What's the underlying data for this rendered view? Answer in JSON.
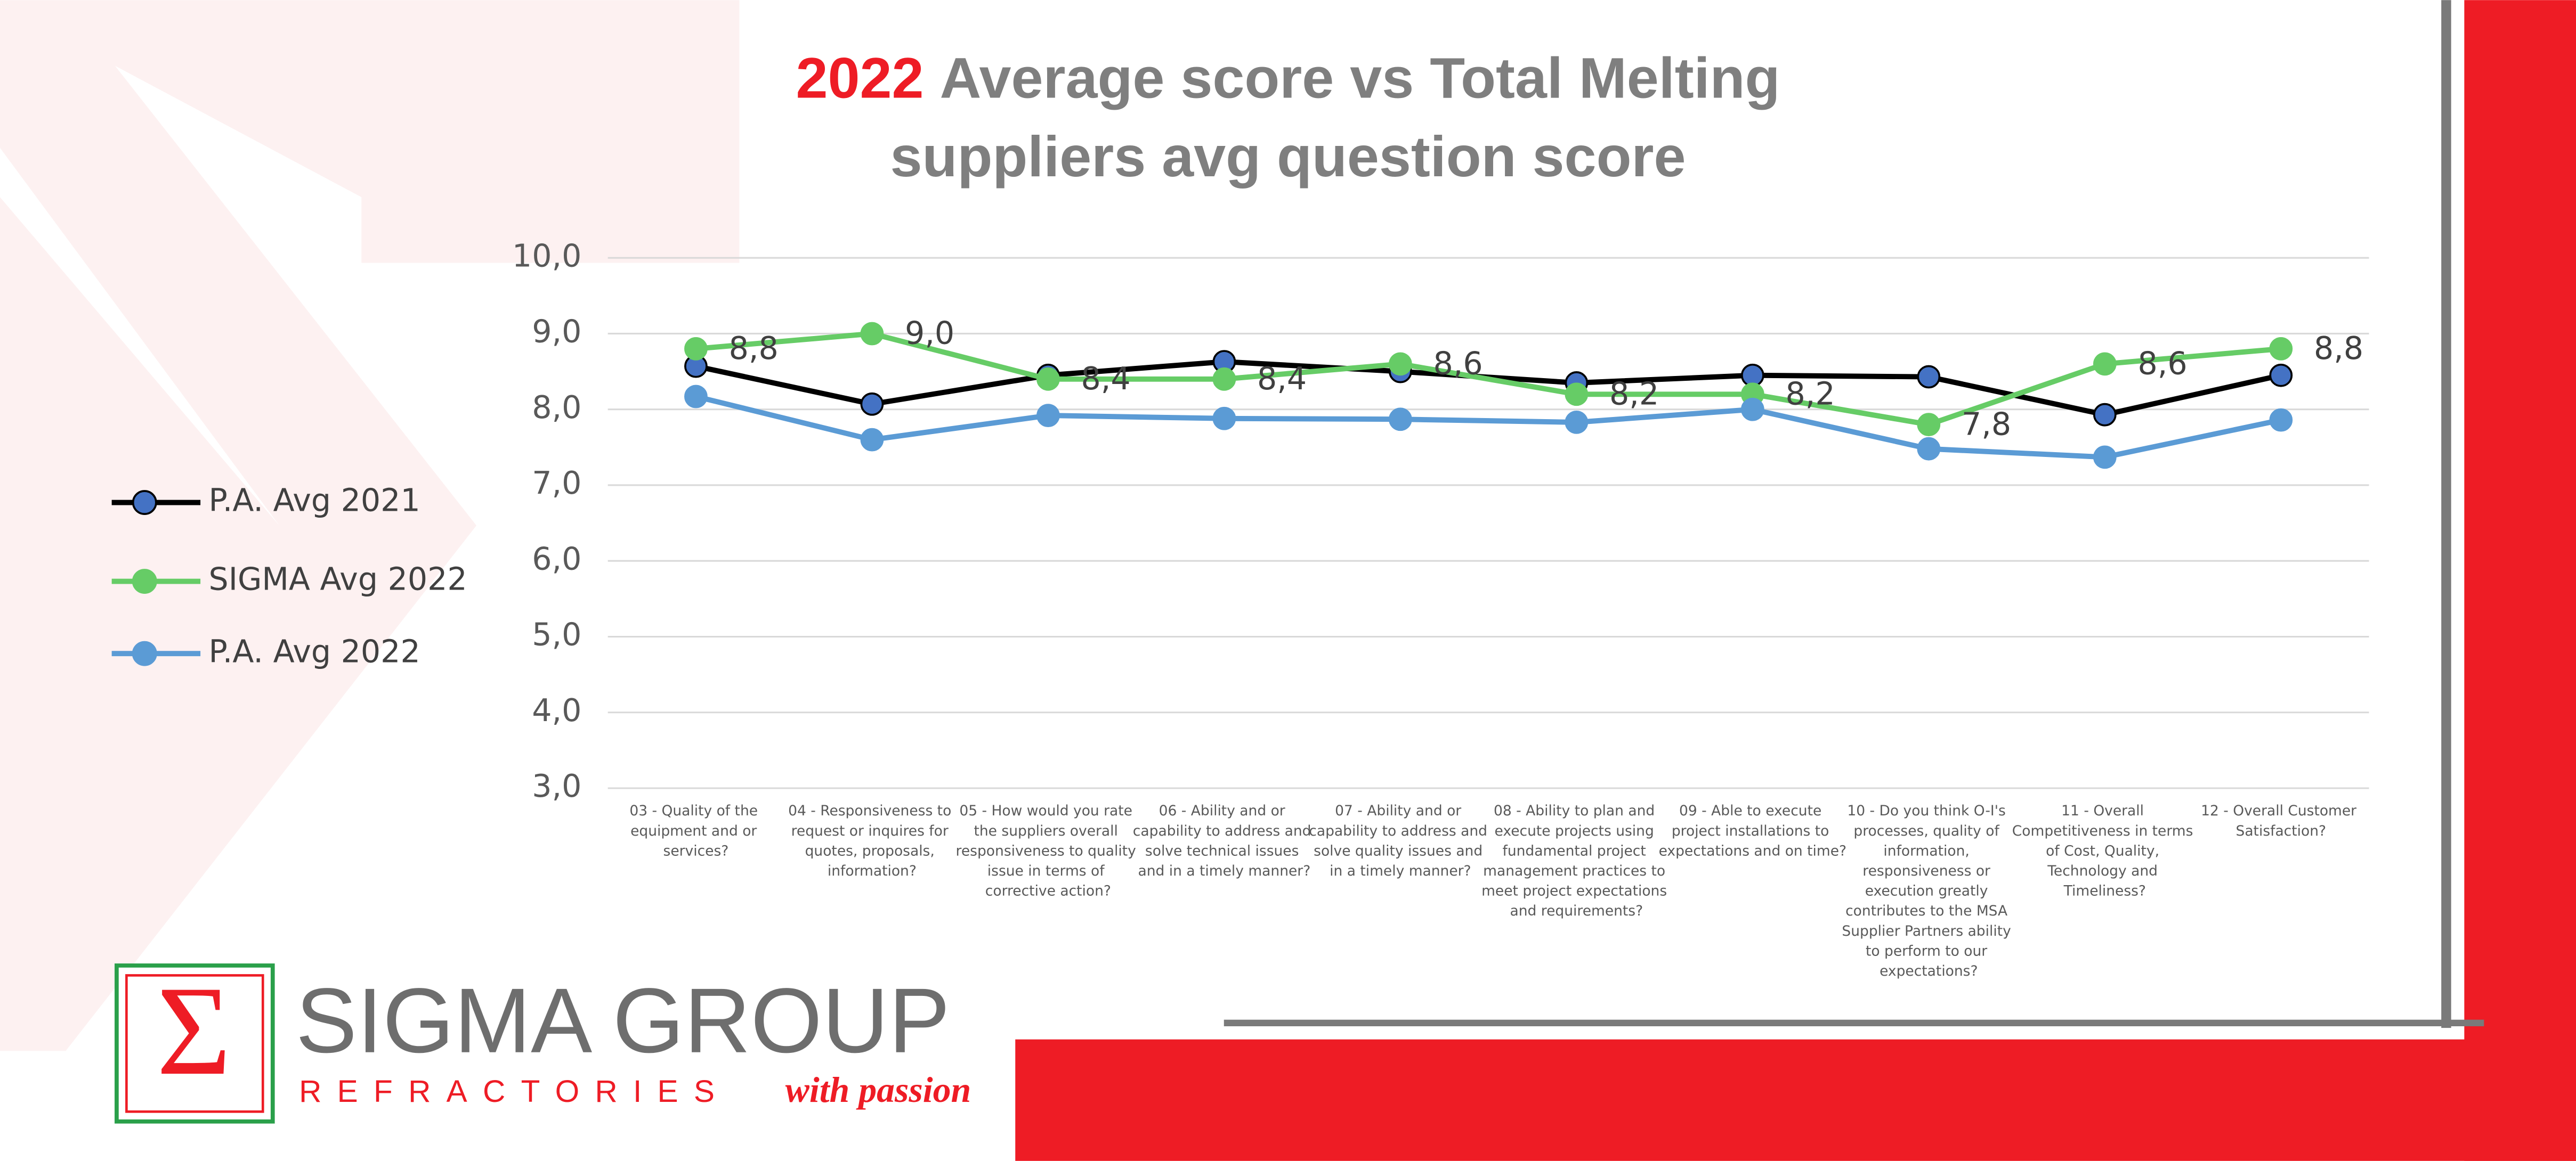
{
  "chart_data": {
    "type": "line",
    "title_highlight": "2022",
    "title_lines": [
      "Average score vs Total Melting",
      "suppliers avg question score"
    ],
    "categories": [
      "03 - Quality of the equipment and or services?",
      "04 - Responsiveness to request or inquires for quotes, proposals, information?",
      "05 - How would you rate the suppliers overall responsiveness to quality issue in terms of corrective action?",
      "06 - Ability and or capability to address and solve technical issues and in a timely manner?",
      "07 - Ability and or capability to address and solve quality issues and in a timely manner?",
      "08 - Ability to plan and execute projects using fundamental project management practices to meet project expectations and requirements?",
      "09 - Able to execute project installations to expectations and on time?",
      "10 - Do you  think O-I's processes, quality of information, responsiveness or execution greatly contributes to the MSA Supplier Partners ability to perform to our expectations?",
      "11 - Overall Competitiveness in terms of Cost, Quality, Technology and Timeliness?",
      "12 - Overall Customer Satisfaction?"
    ],
    "series": [
      {
        "name": "P.A. Avg 2021",
        "color": "#000000",
        "marker_color": "#4472c4",
        "values": [
          8.57,
          8.07,
          8.45,
          8.63,
          8.5,
          8.35,
          8.45,
          8.43,
          7.93,
          8.45
        ]
      },
      {
        "name": "SIGMA Avg 2022",
        "color": "#66cc66",
        "marker_color": "#66cc66",
        "values": [
          8.8,
          9.0,
          8.4,
          8.4,
          8.6,
          8.2,
          8.2,
          7.8,
          8.6,
          8.8
        ],
        "value_labels": [
          "8,8",
          "9,0",
          "8,4",
          "8,4",
          "8,6",
          "8,2",
          "8,2",
          "7,8",
          "8,6",
          "8,8"
        ]
      },
      {
        "name": "P.A. Avg 2022",
        "color": "#5b9bd5",
        "marker_color": "#5b9bd5",
        "values": [
          8.17,
          7.6,
          7.92,
          7.88,
          7.87,
          7.83,
          8.0,
          7.48,
          7.37,
          7.86
        ]
      }
    ],
    "ylim": [
      3,
      10
    ],
    "yticks": [
      {
        "value": 3,
        "label": "3,0"
      },
      {
        "value": 4,
        "label": "4,0"
      },
      {
        "value": 5,
        "label": "5,0"
      },
      {
        "value": 6,
        "label": "6,0"
      },
      {
        "value": 7,
        "label": "7,0"
      },
      {
        "value": 8,
        "label": "8,0"
      },
      {
        "value": 9,
        "label": "9,0"
      },
      {
        "value": 10,
        "label": "10,0"
      }
    ],
    "grid": true,
    "legend": "left"
  },
  "logo": {
    "symbol": "Σ",
    "name": "SIGMA GROUP",
    "subtitle": "REFRACTORIES",
    "slogan": "with passion"
  }
}
